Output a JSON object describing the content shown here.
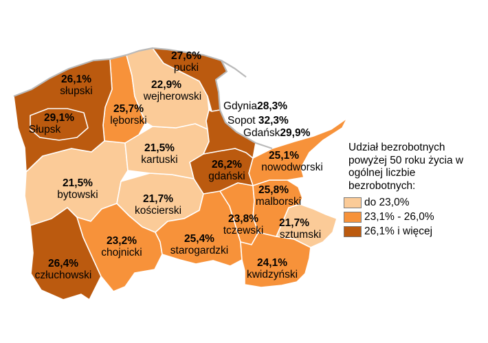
{
  "colors": {
    "class_low": "#fbcb98",
    "class_mid": "#f7923a",
    "class_high": "#bb5a0f",
    "border": "#ffffff",
    "coast": "#b9b9b9"
  },
  "regions": [
    {
      "id": "pucki",
      "name": "pucki",
      "value": "27,6%",
      "class": "high"
    },
    {
      "id": "slupski",
      "name": "słupski",
      "value": "26,1%",
      "class": "high"
    },
    {
      "id": "slupsk",
      "name": "Słupsk",
      "value": "29,1%",
      "class": "high"
    },
    {
      "id": "leborski",
      "name": "lęborski",
      "value": "25,7%",
      "class": "mid"
    },
    {
      "id": "wejherowski",
      "name": "wejherowski",
      "value": "22,9%",
      "class": "low"
    },
    {
      "id": "kartuski",
      "name": "kartuski",
      "value": "21,5%",
      "class": "low"
    },
    {
      "id": "gdanski",
      "name": "gdański",
      "value": "26,2%",
      "class": "high"
    },
    {
      "id": "nowodworski",
      "name": "nowodworski",
      "value": "25,1%",
      "class": "mid"
    },
    {
      "id": "bytowski",
      "name": "bytowski",
      "value": "21,5%",
      "class": "low"
    },
    {
      "id": "koscierski",
      "name": "kościerski",
      "value": "21,7%",
      "class": "low"
    },
    {
      "id": "malborski",
      "name": "malborski",
      "value": "25,8%",
      "class": "mid"
    },
    {
      "id": "tczewski",
      "name": "tczewski",
      "value": "23,8%",
      "class": "mid"
    },
    {
      "id": "sztumski",
      "name": "sztumski",
      "value": "21,7%",
      "class": "low"
    },
    {
      "id": "chojnicki",
      "name": "chojnicki",
      "value": "23,2%",
      "class": "mid"
    },
    {
      "id": "starogardzki",
      "name": "starogardzki",
      "value": "25,4%",
      "class": "mid"
    },
    {
      "id": "kwidzynski",
      "name": "kwidzyński",
      "value": "24,1%",
      "class": "mid"
    },
    {
      "id": "czluchowski",
      "name": "człuchowski",
      "value": "26,4%",
      "class": "high"
    }
  ],
  "cities": [
    {
      "id": "gdynia",
      "name": "Gdynia",
      "value": "28,3%",
      "class": "high"
    },
    {
      "id": "sopot",
      "name": "Sopot",
      "value": "32,3%",
      "class": "high"
    },
    {
      "id": "gdansk",
      "name": "Gdańsk",
      "value": "29,9%",
      "class": "high"
    }
  ],
  "legend": {
    "title": "Udział bezrobotnych powyżej 50 roku życia w ogólnej liczbie bezrobotnych:",
    "items": [
      {
        "label": "do 23,0%",
        "class": "low"
      },
      {
        "label": "23,1% - 26,0%",
        "class": "mid"
      },
      {
        "label": "26,1% i więcej",
        "class": "high"
      }
    ]
  }
}
